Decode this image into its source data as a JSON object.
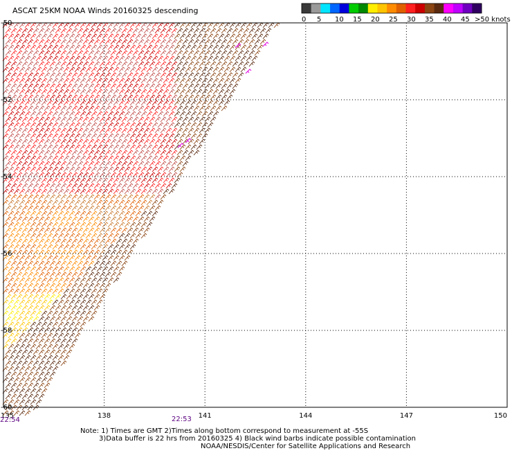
{
  "title": "ASCAT 25KM NOAA Winds 20160325 descending",
  "colorbar": {
    "colors": [
      "#3a3a3a",
      "#9a9a9a",
      "#00e5ff",
      "#0066ff",
      "#0000dd",
      "#00cc00",
      "#008800",
      "#ffee00",
      "#ffc400",
      "#ff8c00",
      "#e06000",
      "#ff2020",
      "#cc0000",
      "#8b4513",
      "#5a2a10",
      "#ff00ff",
      "#c000ff",
      "#7000c0",
      "#300060"
    ],
    "labels": [
      "0",
      "5",
      "10",
      "15",
      "20",
      "25",
      "30",
      "35",
      "40",
      "45",
      ">50 knots"
    ]
  },
  "chart_data": {
    "type": "map",
    "xlim": [
      135,
      150
    ],
    "ylim": [
      -60,
      -50
    ],
    "x_ticks": [
      "135",
      "138",
      "141",
      "144",
      "147",
      "150"
    ],
    "y_ticks": [
      "-50",
      "-52",
      "-54",
      "-56",
      "-58",
      "-60"
    ],
    "grid": true,
    "swath_times": [
      {
        "label": "22:54",
        "lon": 135
      },
      {
        "label": "22:53",
        "lon": 140.5
      }
    ]
  },
  "notes": [
    "Note: 1) Times are GMT 2)Times along bottom correspond to measurement at -55S",
    "3)Data buffer is 22 hrs from 20160325 4) Black wind barbs indicate possible contamination",
    "NOAA/NESDIS/Center for Satellite Applications and Research"
  ]
}
